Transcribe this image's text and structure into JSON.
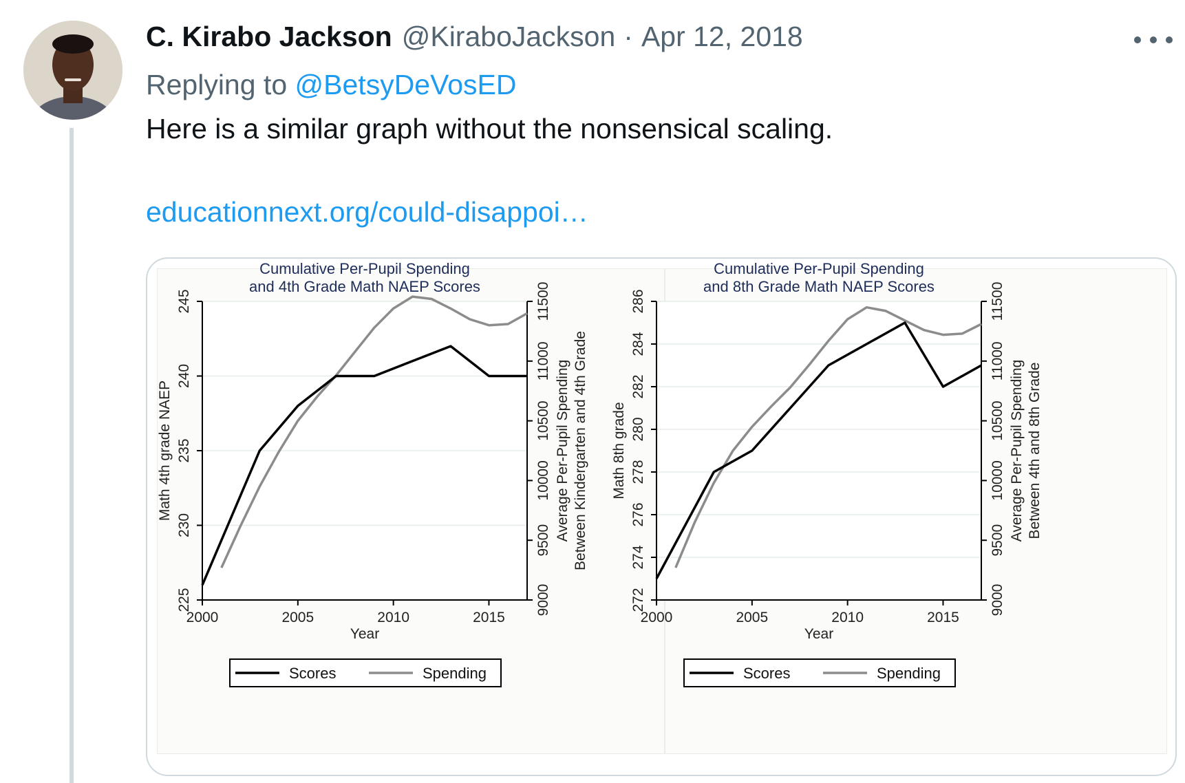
{
  "tweet": {
    "author_name": "C. Kirabo Jackson",
    "author_handle": "@KiraboJackson",
    "separator": "·",
    "date": "Apr 12, 2018",
    "replying_prefix": "Replying to",
    "replying_to": "@BetsyDeVosED",
    "text": "Here is a similar graph without the nonsensical scaling.",
    "link": "educationnext.org/could-disappoi…",
    "more_icon": "more-horizontal-icon",
    "accent_color": "#1d9bf0"
  },
  "chart_data": [
    {
      "type": "line",
      "title": "Cumulative Per-Pupil Spending\nand 4th Grade Math NAEP Scores",
      "xlabel": "Year",
      "ylabel": "Math 4th grade NAEP",
      "y2label": "Average Per-Pupil Spending\nBetween Kindergarten and 4th Grade",
      "xlim": [
        2000,
        2017
      ],
      "xticks": [
        2000,
        2005,
        2010,
        2015
      ],
      "ylim": [
        225,
        245
      ],
      "yticks": [
        225,
        230,
        235,
        240,
        245
      ],
      "y2lim": [
        9000,
        11500
      ],
      "y2ticks": [
        9000,
        9500,
        10000,
        10500,
        11000,
        11500
      ],
      "grid": true,
      "legend_position": "bottom",
      "series": [
        {
          "name": "Scores",
          "axis": "left",
          "color": "#000000",
          "x": [
            2000,
            2003,
            2005,
            2007,
            2009,
            2011,
            2013,
            2015,
            2017
          ],
          "values": [
            226,
            235,
            238,
            240,
            240,
            241,
            242,
            240,
            240
          ]
        },
        {
          "name": "Spending",
          "axis": "right",
          "color": "#8c8c8c",
          "x": [
            2001,
            2002,
            2003,
            2004,
            2005,
            2006,
            2007,
            2008,
            2009,
            2010,
            2011,
            2012,
            2013,
            2014,
            2015,
            2016,
            2017
          ],
          "values": [
            9270,
            9620,
            9950,
            10240,
            10500,
            10700,
            10880,
            11080,
            11280,
            11440,
            11540,
            11520,
            11440,
            11350,
            11300,
            11310,
            11400
          ]
        }
      ]
    },
    {
      "type": "line",
      "title": "Cumulative Per-Pupil Spending\nand 8th Grade Math NAEP Scores",
      "xlabel": "Year",
      "ylabel": "Math 8th grade",
      "y2label": "Average Per-Pupil Spending\nBetween 4th and 8th Grade",
      "xlim": [
        2000,
        2017
      ],
      "xticks": [
        2000,
        2005,
        2010,
        2015
      ],
      "ylim": [
        272,
        286
      ],
      "yticks": [
        272,
        274,
        276,
        278,
        280,
        282,
        284,
        286
      ],
      "y2lim": [
        9000,
        11500
      ],
      "y2ticks": [
        9000,
        9500,
        10000,
        10500,
        11000,
        11500
      ],
      "grid": true,
      "legend_position": "bottom",
      "series": [
        {
          "name": "Scores",
          "axis": "left",
          "color": "#000000",
          "x": [
            2000,
            2003,
            2005,
            2007,
            2009,
            2011,
            2013,
            2015,
            2017
          ],
          "values": [
            273,
            278,
            279,
            281,
            283,
            284,
            285,
            282,
            283
          ]
        },
        {
          "name": "Spending",
          "axis": "right",
          "color": "#8c8c8c",
          "x": [
            2001,
            2002,
            2003,
            2004,
            2005,
            2006,
            2007,
            2008,
            2009,
            2010,
            2011,
            2012,
            2013,
            2014,
            2015,
            2016,
            2017
          ],
          "values": [
            9270,
            9650,
            9980,
            10250,
            10450,
            10620,
            10780,
            10970,
            11170,
            11350,
            11450,
            11420,
            11340,
            11260,
            11220,
            11230,
            11310
          ]
        }
      ]
    }
  ]
}
